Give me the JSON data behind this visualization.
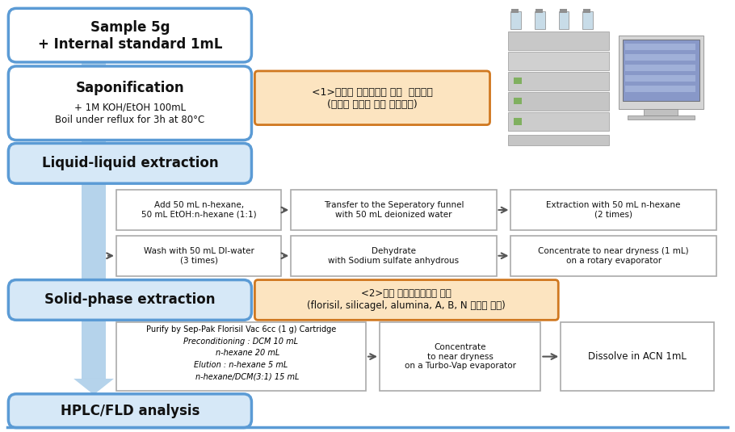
{
  "bg_color": "#ffffff",
  "blue_border": "#5b9bd5",
  "blue_section_bg": "#d6e8f7",
  "orange_border": "#d07820",
  "orange_bg": "#fce4c0",
  "gray_border": "#aaaaaa",
  "white": "#ffffff",
  "dark_text": "#111111",
  "sample_text": "Sample 5g\n+ Internal standard 1mL",
  "sapon_title": "Saponification",
  "sapon_sub": "+ 1M KOH/EtOH 100mL\nBoil under reflux for 3h at 80°C",
  "liquid_text": "Liquid-liquid extraction",
  "solid_text": "Solid-phase extraction",
  "hplc_text": "HPLC/FLD analysis",
  "korean1": "<1>알칼리 분해시간에 따른  분해효율\n(최적의 알칼리 분해 시간선정)",
  "korean2": "<2>정제 컨럼별용잘효율 평가\n(florisil, silicagel, alumina, A, B, N 컨럼을 이용)",
  "r1_texts": [
    "Add 50 mL n-hexane,\n50 mL EtOH:n-hexane (1:1)",
    "Transfer to the Seperatory funnel\nwith 50 mL deionized water",
    "Extraction with 50 mL n-hexane\n(2 times)"
  ],
  "r2_texts": [
    "Wash with 50 mL DI-water\n(3 times)",
    "Dehydrate\nwith Sodium sulfate anhydrous",
    "Concentrate to near dryness (1 mL)\non a rotary evaporator"
  ],
  "spe_lines": [
    "Purify by Sep-Pak Florisil Vac 6cc (1 g) Cartridge",
    "Preconditioning : DCM 10 mL",
    "n-hexane 20 mL",
    "Elution : n-hexane 5 mL",
    "n-hexane/DCM(3:1) 15 mL"
  ],
  "spe_italic": [
    1,
    2,
    3,
    4
  ],
  "spe2_text": "Concentrate\nto near dryness\non a Turbo-Vap evaporator",
  "spe3_text": "Dissolve in ACN 1mL"
}
